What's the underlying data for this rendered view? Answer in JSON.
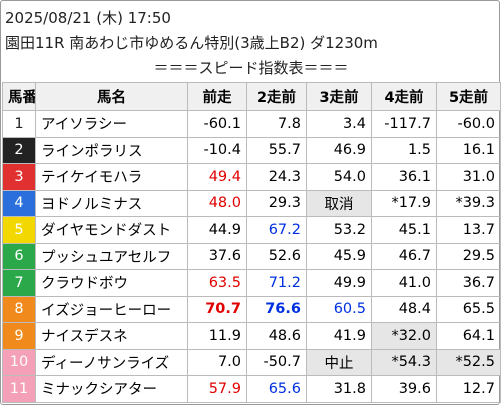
{
  "header": {
    "date": "2025/08/21 (木) 17:50",
    "race": "園田11R 南あわじ市ゆめるん特別(3歳上B2) ダ1230m",
    "title": "＝＝＝スピード指数表＝＝＝"
  },
  "table": {
    "columns": [
      "馬番",
      "馬名",
      "前走",
      "2走前",
      "3走前",
      "4走前",
      "5走前"
    ],
    "rows": [
      [
        "1",
        "アイソラシー",
        "-60.1",
        "7.8",
        "3.4",
        "-117.7",
        "-60.0"
      ],
      [
        "2",
        "ラインポラリス",
        "-10.4",
        "55.7",
        "46.9",
        "1.5",
        "16.1"
      ],
      [
        "3",
        "テイケイモハラ",
        "49.4",
        "24.3",
        "54.0",
        "36.1",
        "31.0"
      ],
      [
        "4",
        "ヨドノルミナス",
        "48.0",
        "29.3",
        "取消",
        "*17.9",
        "*39.3"
      ],
      [
        "5",
        "ダイヤモンドダスト",
        "44.9",
        "67.2",
        "53.2",
        "45.1",
        "13.7"
      ],
      [
        "6",
        "プッシュユアセルフ",
        "37.6",
        "52.6",
        "45.9",
        "46.7",
        "29.5"
      ],
      [
        "7",
        "クラウドボウ",
        "63.5",
        "71.2",
        "49.9",
        "41.0",
        "36.7"
      ],
      [
        "8",
        "イズジョーヒーロー",
        "70.7",
        "76.6",
        "60.5",
        "48.4",
        "65.5"
      ],
      [
        "9",
        "ナイスデスネ",
        "11.9",
        "48.6",
        "41.9",
        "*32.0",
        "64.1"
      ],
      [
        "10",
        "ディーノサンライズ",
        "7.0",
        "-50.7",
        "中止",
        "*54.3",
        "*52.5"
      ],
      [
        "11",
        "ミナックシアター",
        "57.9",
        "65.6",
        "31.8",
        "39.6",
        "12.7"
      ]
    ]
  }
}
